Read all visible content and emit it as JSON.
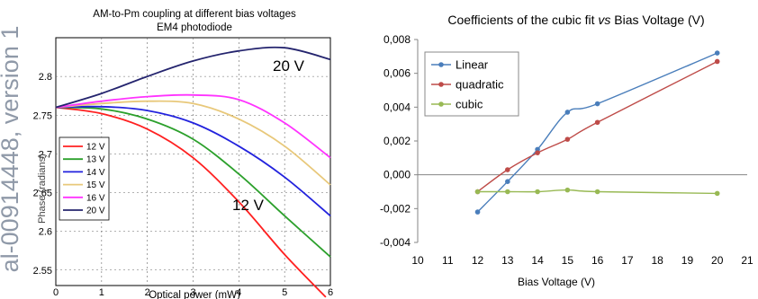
{
  "watermark": {
    "text": "al-00914448, version 1",
    "color": "#8f99a8"
  },
  "chart_data": [
    {
      "type": "line",
      "title": "AM-to-Pm coupling at different bias voltages",
      "subtitle": "EM4 photodiode",
      "xlabel": "Optical power (mW)",
      "ylabel": "Phase (radians)",
      "xlim": [
        0,
        6
      ],
      "ylim": [
        2.53,
        2.85
      ],
      "xticks": [
        "0",
        "1",
        "2",
        "3",
        "4",
        "5",
        "6"
      ],
      "yticks": [
        "2.55",
        "2.6",
        "2.65",
        "2.7",
        "2.75",
        "2.8"
      ],
      "grid": true,
      "legend_position": "left",
      "annotations": [
        {
          "text": "20 V",
          "x": 4.4,
          "y": 2.808
        },
        {
          "text": "12 V",
          "x": 3.4,
          "y": 2.603
        }
      ],
      "series": [
        {
          "name": "12 V",
          "color": "#ff2020",
          "x": [
            0,
            1,
            2,
            3,
            4,
            5,
            5.9
          ],
          "values": [
            2.76,
            2.752,
            2.732,
            2.695,
            2.638,
            2.57,
            2.515
          ]
        },
        {
          "name": "13 V",
          "color": "#2ca02c",
          "x": [
            0,
            1,
            2,
            3,
            4,
            5,
            6
          ],
          "values": [
            2.76,
            2.758,
            2.745,
            2.719,
            2.674,
            2.62,
            2.567
          ]
        },
        {
          "name": "14 V",
          "color": "#2222dd",
          "x": [
            0,
            1,
            2,
            3,
            4,
            5,
            6
          ],
          "values": [
            2.76,
            2.761,
            2.756,
            2.74,
            2.71,
            2.67,
            2.62
          ]
        },
        {
          "name": "15 V",
          "color": "#e8c87a",
          "x": [
            0,
            1,
            2,
            3,
            4,
            5,
            6
          ],
          "values": [
            2.76,
            2.765,
            2.768,
            2.765,
            2.745,
            2.71,
            2.66
          ]
        },
        {
          "name": "16 V",
          "color": "#ff33ff",
          "x": [
            0,
            1,
            2,
            3,
            4,
            5,
            6
          ],
          "values": [
            2.76,
            2.768,
            2.774,
            2.776,
            2.77,
            2.74,
            2.695
          ]
        },
        {
          "name": "20 V",
          "color": "#24246e",
          "x": [
            0,
            1,
            2,
            3,
            4,
            5,
            6
          ],
          "values": [
            2.76,
            2.778,
            2.8,
            2.82,
            2.833,
            2.837,
            2.822
          ]
        }
      ]
    },
    {
      "type": "line",
      "title_parts": [
        "Coefficients of the cubic fit ",
        "vs",
        " Bias Voltage (V)"
      ],
      "xlabel": "Bias Voltage (V)",
      "ylabel": "",
      "xlim": [
        10,
        21
      ],
      "ylim": [
        -0.004,
        0.008
      ],
      "xticks": [
        "10",
        "11",
        "12",
        "13",
        "14",
        "15",
        "16",
        "17",
        "18",
        "19",
        "20",
        "21"
      ],
      "yticks": [
        "-0,004",
        "-0,002",
        "0,000",
        "0,002",
        "0,004",
        "0,006",
        "0,008"
      ],
      "grid": false,
      "legend_position": "top-left",
      "series": [
        {
          "name": "Linear",
          "color": "#4a7ebb",
          "x": [
            12,
            13,
            14,
            15,
            16,
            20
          ],
          "values": [
            -0.0022,
            -0.0004,
            0.0015,
            0.0037,
            0.0042,
            0.0072
          ]
        },
        {
          "name": "quadratic",
          "color": "#be4b48",
          "x": [
            12,
            13,
            14,
            15,
            16,
            20
          ],
          "values": [
            -0.001,
            0.0003,
            0.0013,
            0.0021,
            0.0031,
            0.0067
          ]
        },
        {
          "name": "cubic",
          "color": "#98b954",
          "x": [
            12,
            13,
            14,
            15,
            16,
            20
          ],
          "values": [
            -0.001,
            -0.001,
            -0.001,
            -0.0009,
            -0.001,
            -0.0011
          ]
        }
      ]
    }
  ]
}
